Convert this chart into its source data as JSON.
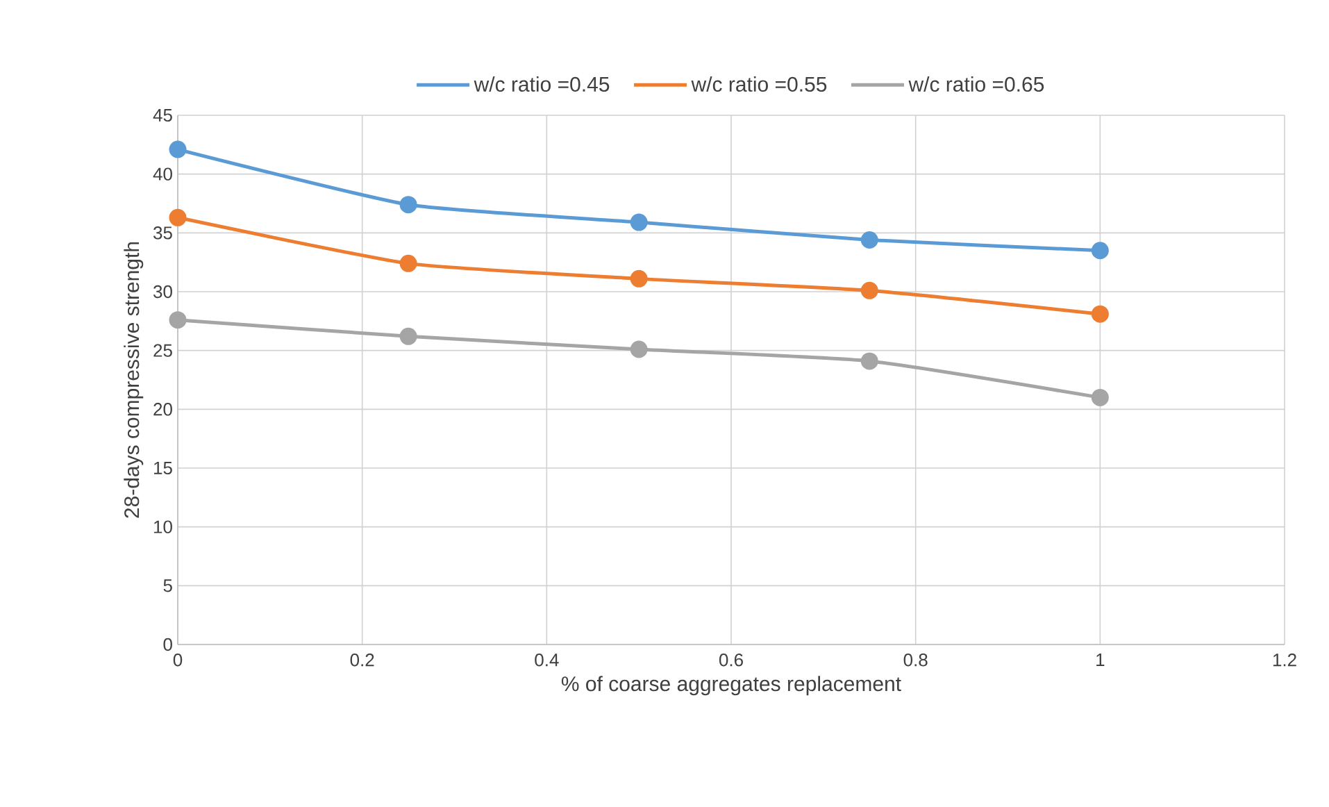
{
  "chart_data": {
    "type": "line",
    "xlabel": "% of coarse aggregates replacement",
    "ylabel": "28-days compressive strength",
    "x": [
      0,
      0.25,
      0.5,
      0.75,
      1
    ],
    "series": [
      {
        "name": "w/c ratio =0.45",
        "color": "#5b9bd5",
        "values": [
          42.1,
          37.4,
          35.9,
          34.4,
          33.5
        ]
      },
      {
        "name": "w/c ratio =0.55",
        "color": "#ed7d31",
        "values": [
          36.3,
          32.4,
          31.1,
          30.1,
          28.1
        ]
      },
      {
        "name": "w/c ratio =0.65",
        "color": "#a5a5a5",
        "values": [
          27.6,
          26.2,
          25.1,
          24.1,
          21.0
        ]
      }
    ],
    "xlim": [
      0,
      1.2
    ],
    "xticks": [
      0,
      0.2,
      0.4,
      0.6,
      0.8,
      1,
      1.2
    ],
    "ylim": [
      0,
      45
    ],
    "yticks": [
      0,
      5,
      10,
      15,
      20,
      25,
      30,
      35,
      40,
      45
    ],
    "grid": true,
    "legend": "top",
    "marker": "circle",
    "line_style": "solid"
  }
}
